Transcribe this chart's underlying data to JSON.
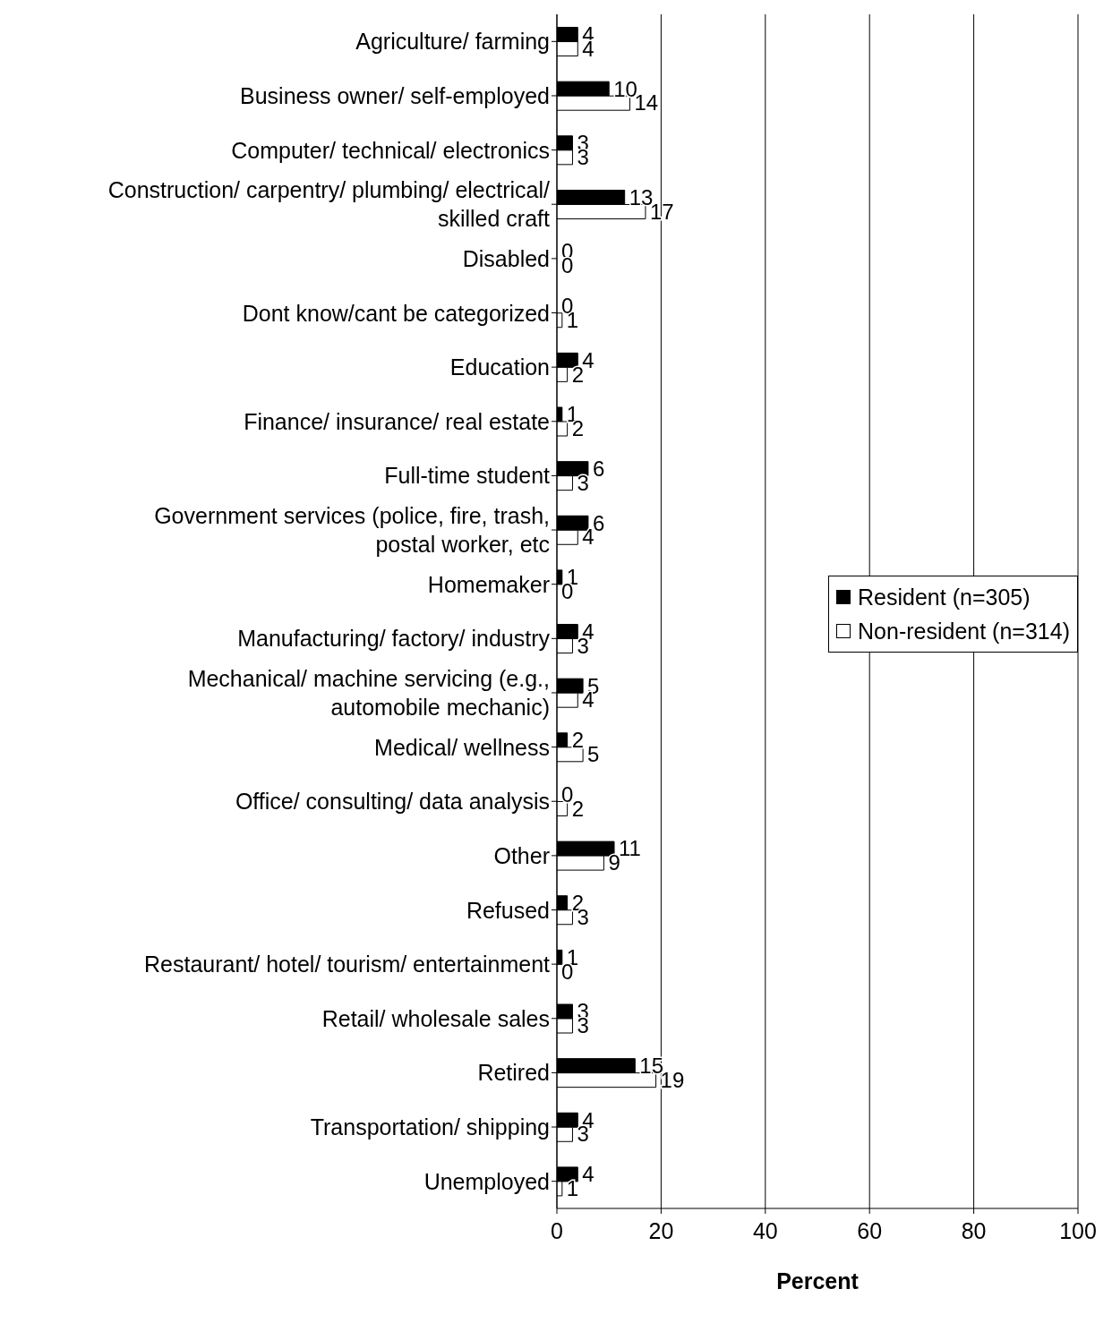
{
  "chart_data": {
    "type": "bar",
    "orientation": "horizontal",
    "xlabel": "Percent",
    "categories": [
      "Agriculture/ farming",
      "Business owner/ self-employed",
      "Computer/ technical/ electronics",
      "Construction/ carpentry/ plumbing/ electrical/ skilled craft",
      "Disabled",
      "Dont know/cant be categorized",
      "Education",
      "Finance/ insurance/ real estate",
      "Full-time student",
      "Government services (police, fire, trash, postal worker, etc",
      "Homemaker",
      "Manufacturing/ factory/ industry",
      "Mechanical/ machine servicing (e.g., automobile mechanic)",
      "Medical/ wellness",
      "Office/ consulting/ data analysis",
      "Other",
      "Refused",
      "Restaurant/ hotel/ tourism/ entertainment",
      "Retail/ wholesale sales",
      "Retired",
      "Transportation/ shipping",
      "Unemployed"
    ],
    "series": [
      {
        "name": "Resident (n=305)",
        "color": "#000000",
        "values": [
          4,
          10,
          3,
          13,
          0,
          0,
          4,
          1,
          6,
          6,
          1,
          4,
          5,
          2,
          0,
          11,
          2,
          1,
          3,
          15,
          4,
          4
        ]
      },
      {
        "name": "Non-resident (n=314)",
        "color": "#ffffff",
        "values": [
          4,
          14,
          3,
          17,
          0,
          1,
          2,
          2,
          3,
          4,
          0,
          3,
          4,
          5,
          2,
          9,
          3,
          0,
          3,
          19,
          3,
          1
        ]
      }
    ],
    "xlim": [
      0,
      100
    ],
    "xticks": [
      0,
      20,
      40,
      60,
      80,
      100
    ],
    "grid": "x",
    "legend": "right",
    "data_labels": true
  }
}
